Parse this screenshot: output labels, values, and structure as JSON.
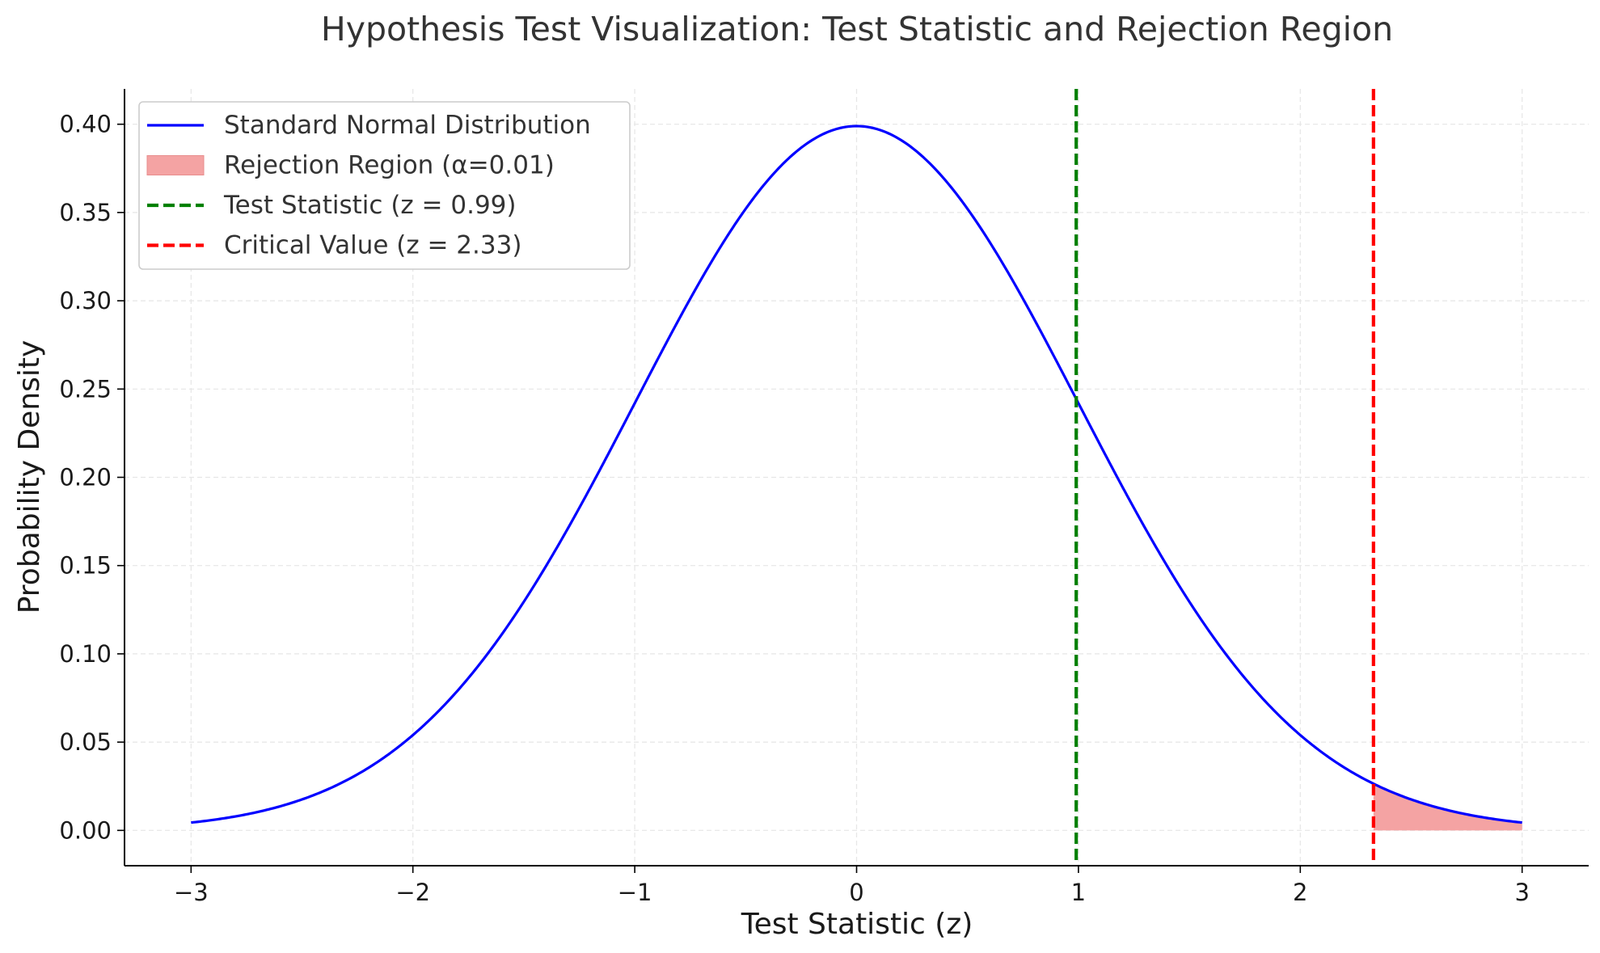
{
  "chart_data": {
    "type": "line",
    "title": "Hypothesis Test Visualization: Test Statistic and Rejection Region",
    "xlabel": "Test Statistic (z)",
    "ylabel": "Probability Density",
    "xlim": [
      -3.3,
      3.3
    ],
    "ylim": [
      -0.02,
      0.42
    ],
    "grid": true,
    "legend_position": "upper-left",
    "x_ticks": [
      -3,
      -2,
      -1,
      0,
      1,
      2,
      3
    ],
    "x_tick_labels": [
      "−3",
      "−2",
      "−1",
      "0",
      "1",
      "2",
      "3"
    ],
    "y_ticks": [
      0.0,
      0.05,
      0.1,
      0.15,
      0.2,
      0.25,
      0.3,
      0.35,
      0.4
    ],
    "y_tick_labels": [
      "0.00",
      "0.05",
      "0.10",
      "0.15",
      "0.20",
      "0.25",
      "0.30",
      "0.35",
      "0.40"
    ],
    "series": [
      {
        "name": "Standard Normal Distribution",
        "kind": "curve",
        "color": "#0000ff",
        "x": [
          -3.0,
          -2.75,
          -2.5,
          -2.25,
          -2.0,
          -1.75,
          -1.5,
          -1.25,
          -1.0,
          -0.75,
          -0.5,
          -0.25,
          0.0,
          0.25,
          0.5,
          0.75,
          1.0,
          1.25,
          1.5,
          1.75,
          2.0,
          2.25,
          2.5,
          2.75,
          3.0
        ],
        "y": [
          0.0044,
          0.0091,
          0.0175,
          0.0317,
          0.054,
          0.0863,
          0.1295,
          0.1826,
          0.242,
          0.3011,
          0.3521,
          0.3867,
          0.3989,
          0.3867,
          0.3521,
          0.3011,
          0.242,
          0.1826,
          0.1295,
          0.0863,
          0.054,
          0.0317,
          0.0175,
          0.0091,
          0.0044
        ]
      },
      {
        "name": "Rejection Region (α=0.01)",
        "kind": "area",
        "color": "#f4a3a3",
        "x": [
          2.33,
          2.5,
          2.75,
          3.0
        ],
        "y": [
          0.0264,
          0.0175,
          0.0091,
          0.0044
        ]
      },
      {
        "name": "Test Statistic (z = 0.99)",
        "kind": "vline",
        "color": "#008000",
        "x": 0.99
      },
      {
        "name": "Critical Value (z = 2.33)",
        "kind": "vline",
        "color": "#ff0000",
        "x": 2.33
      }
    ]
  }
}
